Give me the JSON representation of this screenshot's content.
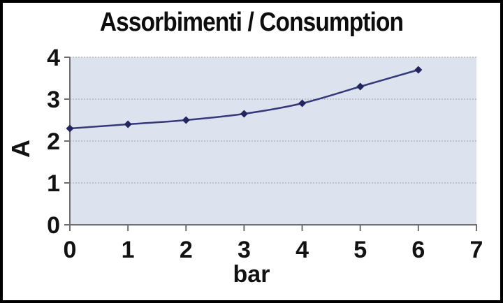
{
  "chart_data": {
    "type": "line",
    "title": "Assorbimenti / Consumption",
    "xlabel": "bar",
    "ylabel": "A",
    "x": [
      0,
      1,
      2,
      3,
      4,
      5,
      6
    ],
    "values": [
      2.3,
      2.4,
      2.5,
      2.65,
      2.9,
      3.3,
      3.7
    ],
    "xlim": [
      0,
      7
    ],
    "ylim": [
      0,
      4
    ],
    "x_ticks": [
      0,
      1,
      2,
      3,
      4,
      5,
      6,
      7
    ],
    "y_ticks": [
      0,
      1,
      2,
      3,
      4
    ],
    "grid": "horizontal-dotted",
    "legend_position": "none",
    "line_style": "smooth",
    "marker": "diamond",
    "colors": {
      "line": "#34397b",
      "marker": "#23265e",
      "plot_bg": "#dce3ee",
      "grid": "#9aa0a8",
      "axis": "#6f6f6f",
      "text": "#121212",
      "title": "#0d0d0d",
      "page_bg": "#ffffff",
      "border": "#000000"
    }
  }
}
